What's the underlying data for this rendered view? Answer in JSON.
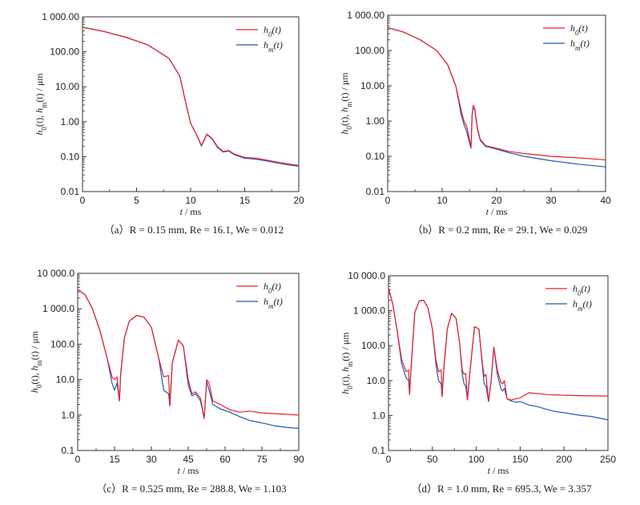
{
  "colors": {
    "h0": "#e8202a",
    "hm": "#1f5bb5"
  },
  "chart_data": [
    {
      "type": "line",
      "scale": "log",
      "xlabel": "t / ms",
      "ylabel": "h0(t), hm(t) / μm",
      "xlim": [
        0,
        20
      ],
      "ylim": [
        0.01,
        1000
      ],
      "xticks": [
        "0",
        "5",
        "10",
        "15",
        "20"
      ],
      "yticks": [
        "0.01",
        "0.10",
        "1.00",
        "10.00",
        "100.00",
        "1 000.00"
      ],
      "caption_label": "（a）",
      "caption": "R = 0.15 mm,  Re = 16.1,  We = 0.012",
      "legend": [
        "h0(t)",
        "hm(t)"
      ],
      "series": [
        {
          "name": "h0(t)",
          "x": [
            0,
            2,
            4,
            6,
            8,
            9,
            9.5,
            10,
            10.5,
            11,
            11.5,
            12,
            12.5,
            13,
            13.5,
            14,
            15,
            16,
            17,
            18,
            19,
            20
          ],
          "y": [
            500,
            380,
            260,
            160,
            65,
            20,
            4,
            0.9,
            0.45,
            0.21,
            0.44,
            0.33,
            0.19,
            0.14,
            0.15,
            0.12,
            0.095,
            0.09,
            0.08,
            0.07,
            0.062,
            0.056
          ]
        },
        {
          "name": "hm(t)",
          "x": [
            0,
            2,
            4,
            6,
            8,
            9,
            9.5,
            10,
            10.5,
            11,
            11.5,
            12,
            12.5,
            13,
            13.5,
            14,
            15,
            16,
            17,
            18,
            19,
            20
          ],
          "y": [
            500,
            380,
            260,
            160,
            65,
            20,
            4,
            0.9,
            0.45,
            0.2,
            0.43,
            0.32,
            0.18,
            0.135,
            0.145,
            0.115,
            0.09,
            0.085,
            0.075,
            0.066,
            0.058,
            0.053
          ]
        }
      ]
    },
    {
      "type": "line",
      "scale": "log",
      "xlabel": "t / ms",
      "ylabel": "h0(t), hm(t) / μm",
      "xlim": [
        0,
        40
      ],
      "ylim": [
        0.01,
        1000
      ],
      "xticks": [
        "0",
        "10",
        "20",
        "30",
        "40"
      ],
      "yticks": [
        "0.01",
        "0.10",
        "1.00",
        "10.00",
        "100.00",
        "1 000.00"
      ],
      "caption_label": "（b）",
      "caption": "R = 0.2 mm,  Re = 29.1,  We = 0.029",
      "legend": [
        "h0(t)",
        "hm(t)"
      ],
      "series": [
        {
          "name": "h0(t)",
          "x": [
            0,
            3,
            6,
            9,
            11,
            12.5,
            13.5,
            14,
            14.5,
            15,
            15.3,
            15.5,
            15.7,
            16,
            16.5,
            17,
            18,
            20,
            22,
            25,
            30,
            35,
            40
          ],
          "y": [
            450,
            330,
            200,
            100,
            40,
            10,
            2,
            1,
            0.7,
            0.3,
            0.18,
            1.5,
            2.8,
            2.2,
            0.6,
            0.3,
            0.2,
            0.17,
            0.14,
            0.12,
            0.1,
            0.09,
            0.08
          ]
        },
        {
          "name": "hm(t)",
          "x": [
            0,
            3,
            6,
            9,
            11,
            12.5,
            13.5,
            14,
            14.5,
            15,
            15.3,
            15.5,
            15.7,
            16,
            16.5,
            17,
            18,
            20,
            22,
            25,
            30,
            35,
            40
          ],
          "y": [
            450,
            330,
            200,
            100,
            40,
            10,
            1.5,
            0.8,
            0.5,
            0.25,
            0.17,
            1.4,
            2.6,
            2.0,
            0.55,
            0.28,
            0.19,
            0.16,
            0.13,
            0.1,
            0.075,
            0.06,
            0.05
          ]
        }
      ]
    },
    {
      "type": "line",
      "scale": "log",
      "xlabel": "t / ms",
      "ylabel": "h0(t), hm(t) / μm",
      "xlim": [
        0,
        90
      ],
      "ylim": [
        0.1,
        10000
      ],
      "xticks": [
        "0",
        "15",
        "30",
        "45",
        "60",
        "75",
        "90"
      ],
      "yticks": [
        "0.1",
        "1.0",
        "10.0",
        "100.0",
        "1 000.0",
        "10 000.0"
      ],
      "caption_label": "（c）",
      "caption": "R = 0.525 mm,  Re = 288.8,  We = 1.103",
      "legend": [
        "h0(t)",
        "hm(t)"
      ],
      "series": [
        {
          "name": "h0(t)",
          "x": [
            0,
            3,
            6,
            9,
            12,
            14,
            15,
            16,
            17,
            17.5,
            19,
            21,
            24,
            27,
            30,
            33,
            35,
            37,
            37.5,
            38.5,
            41,
            43,
            45,
            46.5,
            48,
            50,
            51.5,
            52.5,
            53.5,
            55,
            58,
            62,
            66,
            70,
            75,
            80,
            85,
            90
          ],
          "y": [
            3500,
            2500,
            1000,
            250,
            40,
            12,
            10,
            12,
            2.5,
            15,
            150,
            450,
            650,
            580,
            300,
            40,
            12,
            13,
            1.8,
            30,
            130,
            90,
            10,
            4,
            4.5,
            3,
            0.8,
            10,
            8,
            2.5,
            2,
            1.4,
            1.2,
            1.3,
            1.15,
            1.1,
            1.05,
            1.0
          ]
        },
        {
          "name": "hm(t)",
          "x": [
            0,
            3,
            6,
            9,
            12,
            14,
            15,
            16,
            17,
            17.5,
            19,
            21,
            24,
            27,
            30,
            33,
            35,
            37,
            37.5,
            38.5,
            41,
            43,
            45,
            46.5,
            48,
            50,
            51.5,
            52.5,
            53.5,
            55,
            58,
            62,
            66,
            70,
            75,
            80,
            85,
            90
          ],
          "y": [
            3500,
            2500,
            1000,
            250,
            40,
            8,
            5,
            8,
            2.5,
            15,
            150,
            450,
            650,
            580,
            300,
            40,
            5,
            4,
            1.8,
            30,
            130,
            90,
            7,
            3.5,
            4,
            2.5,
            0.8,
            9,
            5,
            2,
            1.5,
            1.2,
            0.9,
            0.7,
            0.6,
            0.5,
            0.45,
            0.42
          ]
        }
      ]
    },
    {
      "type": "line",
      "scale": "log",
      "xlabel": "t / ms",
      "ylabel": "h0(t), hm(t) / μm",
      "xlim": [
        0,
        250
      ],
      "ylim": [
        0.1,
        10000
      ],
      "xticks": [
        "0",
        "50",
        "100",
        "150",
        "200",
        "250"
      ],
      "yticks": [
        "0.1",
        "1.0",
        "10.0",
        "100.0",
        "1 000.0",
        "10 000.0"
      ],
      "caption_label": "（d）",
      "caption": "R = 1.0 mm,  Re = 695.3,  We = 3.357",
      "legend": [
        "h0(t)",
        "hm(t)"
      ],
      "series": [
        {
          "name": "h0(t)",
          "x": [
            0,
            5,
            10,
            15,
            20,
            23,
            24,
            26,
            30,
            35,
            40,
            45,
            50,
            54,
            57,
            60,
            61,
            63,
            67,
            72,
            77,
            81,
            84,
            86,
            88,
            90,
            93,
            98,
            103,
            107,
            109,
            111,
            114,
            117,
            120,
            124,
            128,
            130,
            132,
            135,
            140,
            145,
            150,
            160,
            180,
            200,
            220,
            250
          ],
          "y": [
            4500,
            1500,
            250,
            40,
            18,
            20,
            4,
            30,
            900,
            1900,
            2000,
            1200,
            300,
            40,
            18,
            20,
            3.5,
            20,
            300,
            850,
            600,
            120,
            20,
            15,
            16,
            2.8,
            20,
            350,
            300,
            30,
            13,
            15,
            2.5,
            10,
            90,
            20,
            9,
            8,
            10,
            3,
            2.8,
            3,
            3.2,
            4.5,
            4,
            3.8,
            3.7,
            3.6
          ]
        },
        {
          "name": "hm(t)",
          "x": [
            0,
            5,
            10,
            15,
            20,
            23,
            24,
            26,
            30,
            35,
            40,
            45,
            50,
            54,
            57,
            60,
            61,
            63,
            67,
            72,
            77,
            81,
            84,
            86,
            88,
            90,
            93,
            98,
            103,
            107,
            109,
            111,
            114,
            117,
            120,
            124,
            128,
            130,
            132,
            135,
            140,
            145,
            150,
            160,
            170,
            180,
            190,
            200,
            210,
            220,
            230,
            240,
            250
          ],
          "y": [
            4500,
            1500,
            250,
            30,
            12,
            10,
            4,
            30,
            900,
            1900,
            2000,
            1200,
            300,
            30,
            10,
            8,
            3.5,
            20,
            300,
            850,
            600,
            120,
            15,
            8,
            7,
            2.8,
            20,
            350,
            300,
            25,
            8,
            7,
            2.5,
            10,
            90,
            15,
            6,
            5,
            6,
            3,
            2.6,
            2.4,
            2.5,
            2,
            1.8,
            1.5,
            1.3,
            1.2,
            1.1,
            1.0,
            0.95,
            0.85,
            0.75
          ]
        }
      ]
    }
  ]
}
